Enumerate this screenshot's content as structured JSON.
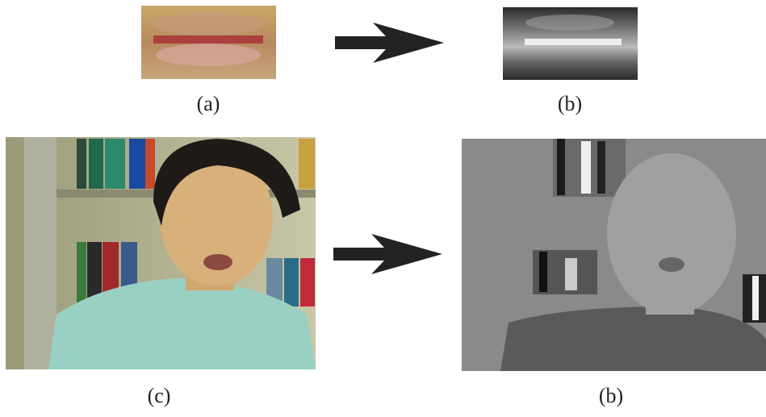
{
  "figure": {
    "panels": [
      {
        "label": "(a)"
      },
      {
        "label": "(b)"
      },
      {
        "label": "(c)"
      },
      {
        "label": "(b)"
      }
    ]
  }
}
